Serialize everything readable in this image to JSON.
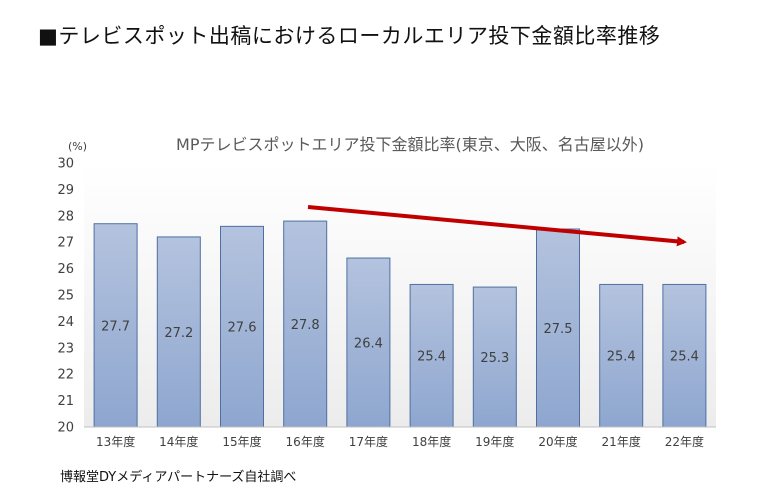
{
  "page": {
    "title": "■テレビスポット出稿におけるローカルエリア投下金額比率推移",
    "source": "博報堂DYメディアパートナーズ自社調べ"
  },
  "chart_data": {
    "type": "bar",
    "title": "MPテレビスポットエリア投下金額比率(東京、大阪、名古屋以外)",
    "ylabel": "(%)",
    "xlabel": "",
    "categories": [
      "13年度",
      "14年度",
      "15年度",
      "16年度",
      "17年度",
      "18年度",
      "19年度",
      "20年度",
      "21年度",
      "22年度"
    ],
    "values": [
      27.7,
      27.2,
      27.6,
      27.8,
      26.4,
      25.4,
      25.3,
      27.5,
      25.4,
      25.4
    ],
    "data_labels": [
      "27.7",
      "27.2",
      "27.6",
      "27.8",
      "26.4",
      "25.4",
      "25.3",
      "27.5",
      "25.4",
      "25.4"
    ],
    "ylim": [
      20,
      30
    ],
    "yticks": [
      20,
      21,
      22,
      23,
      24,
      25,
      26,
      27,
      28,
      29,
      30
    ],
    "grid": false,
    "legend": "none",
    "annotation": {
      "type": "trend-arrow",
      "direction": "downward",
      "color": "#c00000"
    },
    "colors": {
      "bar_top": "#b4c3de",
      "bar_bottom": "#8ea6cf",
      "bar_border": "#4f6fa3",
      "text": "#404040"
    }
  }
}
